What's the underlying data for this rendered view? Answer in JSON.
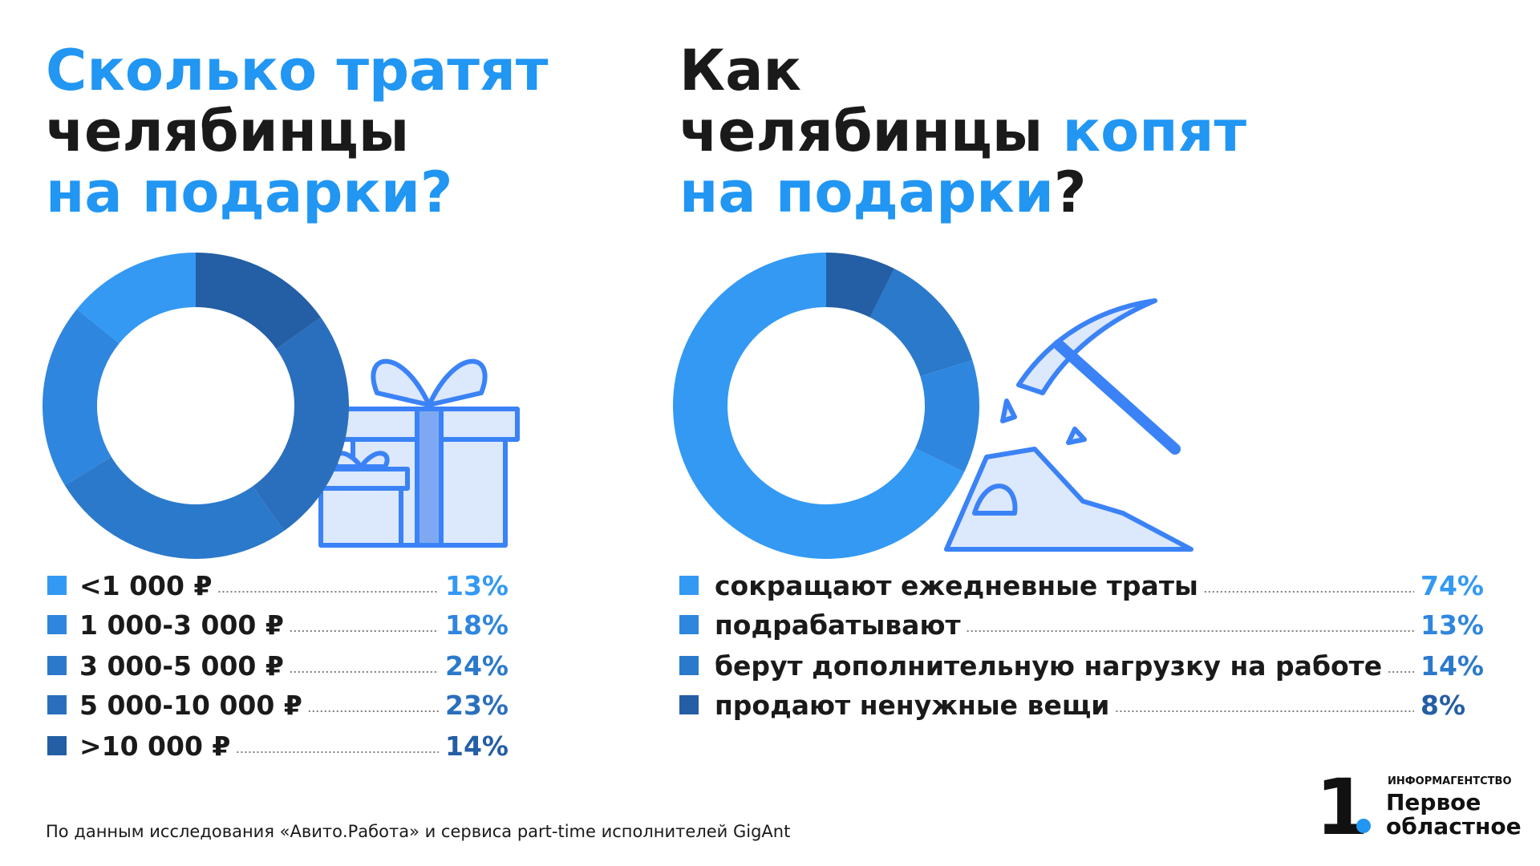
{
  "chart_data": [
    {
      "type": "donut",
      "title_lines": [
        [
          {
            "text": "Сколько тратят",
            "color": "#2196f3"
          }
        ],
        [
          {
            "text": "челябинцы",
            "color": "#1a1a1a"
          }
        ],
        [
          {
            "text": "на подарки?",
            "color": "#2196f3"
          }
        ]
      ],
      "categories": [
        "<1 000 ₽",
        "1 000-3 000 ₽",
        "3 000-5 000 ₽",
        "5 000-10 000 ₽",
        ">10 000 ₽"
      ],
      "values": [
        13,
        18,
        24,
        23,
        14
      ],
      "value_labels": [
        "13%",
        "18%",
        "24%",
        "23%",
        "14%"
      ],
      "colors": [
        "#3399f3",
        "#2f86de",
        "#2b79cb",
        "#2a6fbd",
        "#245ea4"
      ]
    },
    {
      "type": "donut",
      "title_lines": [
        [
          {
            "text": "Как",
            "color": "#1a1a1a"
          }
        ],
        [
          {
            "text": "челябинцы ",
            "color": "#1a1a1a"
          },
          {
            "text": "копят",
            "color": "#2196f3"
          }
        ],
        [
          {
            "text": "на подарки",
            "color": "#2196f3"
          },
          {
            "text": "?",
            "color": "#1a1a1a"
          }
        ]
      ],
      "categories": [
        "сокращают ежедневные траты",
        "подрабатывают",
        "берут дополнительную нагрузку на работе",
        "продают ненужные вещи"
      ],
      "values": [
        74,
        13,
        14,
        8
      ],
      "value_labels": [
        "74%",
        "13%",
        "14%",
        "8%"
      ],
      "colors": [
        "#3399f3",
        "#2f86de",
        "#2b79cb",
        "#245ea4"
      ]
    }
  ],
  "source": "По данным исследования «Авито.Работа» и сервиса part-time исполнителей GigAnt",
  "logo": {
    "mark": "1",
    "caption": "ИНФОРМАГЕНТСТВО",
    "line1": "Первое",
    "line2": "областное"
  }
}
